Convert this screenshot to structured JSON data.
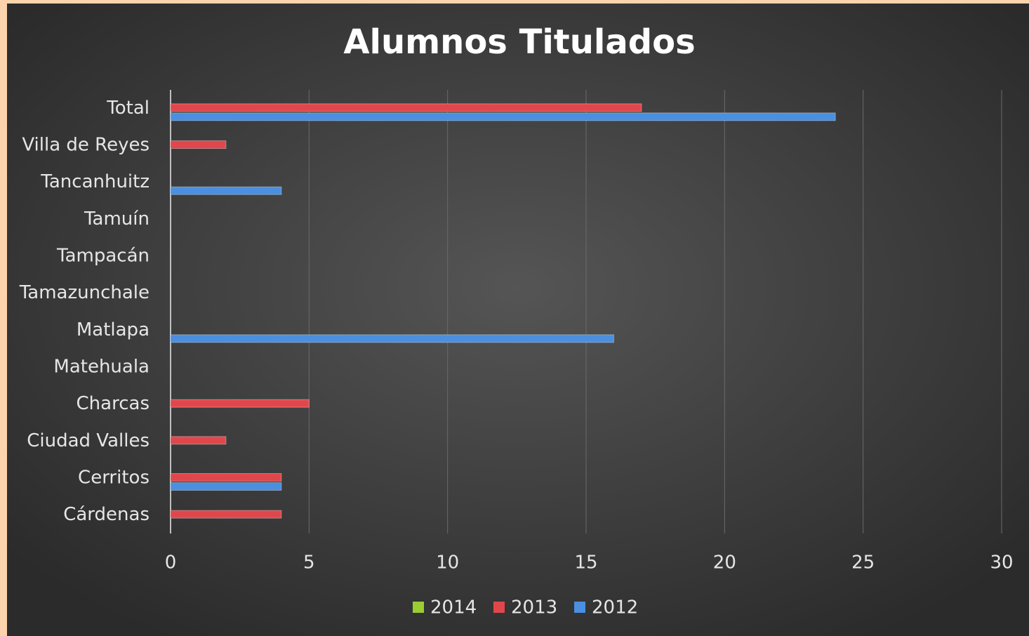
{
  "chart_data": {
    "type": "bar",
    "orientation": "horizontal",
    "title": "Alumnos Titulados",
    "categories": [
      "Cárdenas",
      "Cerritos",
      "Ciudad Valles",
      "Charcas",
      "Matehuala",
      "Matlapa",
      "Tamazunchale",
      "Tampacán",
      "Tamuín",
      "Tancanhuitz",
      "Villa de Reyes",
      "Total"
    ],
    "series": [
      {
        "name": "2014",
        "color": "#9acd32",
        "values": [
          0,
          0,
          0,
          0,
          0,
          0,
          0,
          0,
          0,
          0,
          0,
          0
        ]
      },
      {
        "name": "2013",
        "color": "#e0474c",
        "values": [
          4,
          4,
          2,
          5,
          0,
          0,
          0,
          0,
          0,
          0,
          2,
          17
        ]
      },
      {
        "name": "2012",
        "color": "#4a8fe0",
        "values": [
          0,
          4,
          0,
          0,
          0,
          16,
          0,
          0,
          0,
          4,
          0,
          24
        ]
      }
    ],
    "xlim": [
      0,
      30
    ],
    "xticks": [
      0,
      5,
      10,
      15,
      20,
      25,
      30
    ],
    "grid": true,
    "legend": "bottom"
  }
}
